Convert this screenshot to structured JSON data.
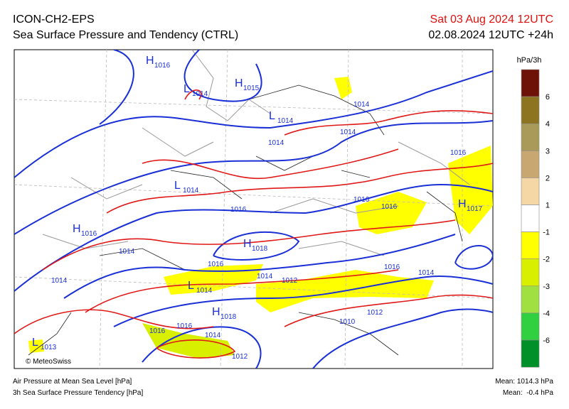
{
  "header": {
    "model": "ICON-CH2-EPS",
    "title": "Sea Surface Pressure and Tendency (CTRL)",
    "valid": "Sat 03 Aug 2024 12UTC",
    "run": "02.08.2024 12UTC +24h"
  },
  "legend": {
    "unit": "hPa/3h",
    "colors": [
      "#6e1208",
      "#8c7420",
      "#a99a5a",
      "#c8a870",
      "#f5d7a5",
      "#ffffff",
      "#ffff00",
      "#d8f000",
      "#a0e040",
      "#30d040",
      "#00902a"
    ],
    "labels": [
      "6",
      "4",
      "3",
      "2",
      "1",
      "-1",
      "-2",
      "-3",
      "-4",
      "-6"
    ]
  },
  "map": {
    "centers": [
      {
        "symbol": "H",
        "value": "1016"
      },
      {
        "symbol": "L",
        "value": "1014"
      },
      {
        "symbol": "H",
        "value": "1015"
      },
      {
        "symbol": "L",
        "value": "1014"
      },
      {
        "symbol": "L",
        "value": "1014"
      },
      {
        "symbol": "H",
        "value": "1016"
      },
      {
        "symbol": "H",
        "value": "1018"
      },
      {
        "symbol": "L",
        "value": "1014"
      },
      {
        "symbol": "H",
        "value": "1018"
      },
      {
        "symbol": "L",
        "value": "1013"
      },
      {
        "symbol": "H",
        "value": "1017"
      }
    ],
    "isobar_labels": [
      "1014",
      "1014",
      "1014",
      "1016",
      "1016",
      "1016",
      "1016",
      "1014",
      "1014",
      "1016",
      "1014",
      "1012",
      "1016",
      "1014",
      "1012",
      "1010",
      "1016",
      "1016",
      "1014",
      "1012"
    ]
  },
  "footer": {
    "credit": "© MeteoSwiss",
    "line1": "Air Pressure at Mean Sea Level [hPa]",
    "line2": "3h Sea Surface Pressure Tendency [hPa]",
    "mean1": "Mean: 1014.3 hPa",
    "mean2": "Mean:  -0.4 hPa"
  }
}
